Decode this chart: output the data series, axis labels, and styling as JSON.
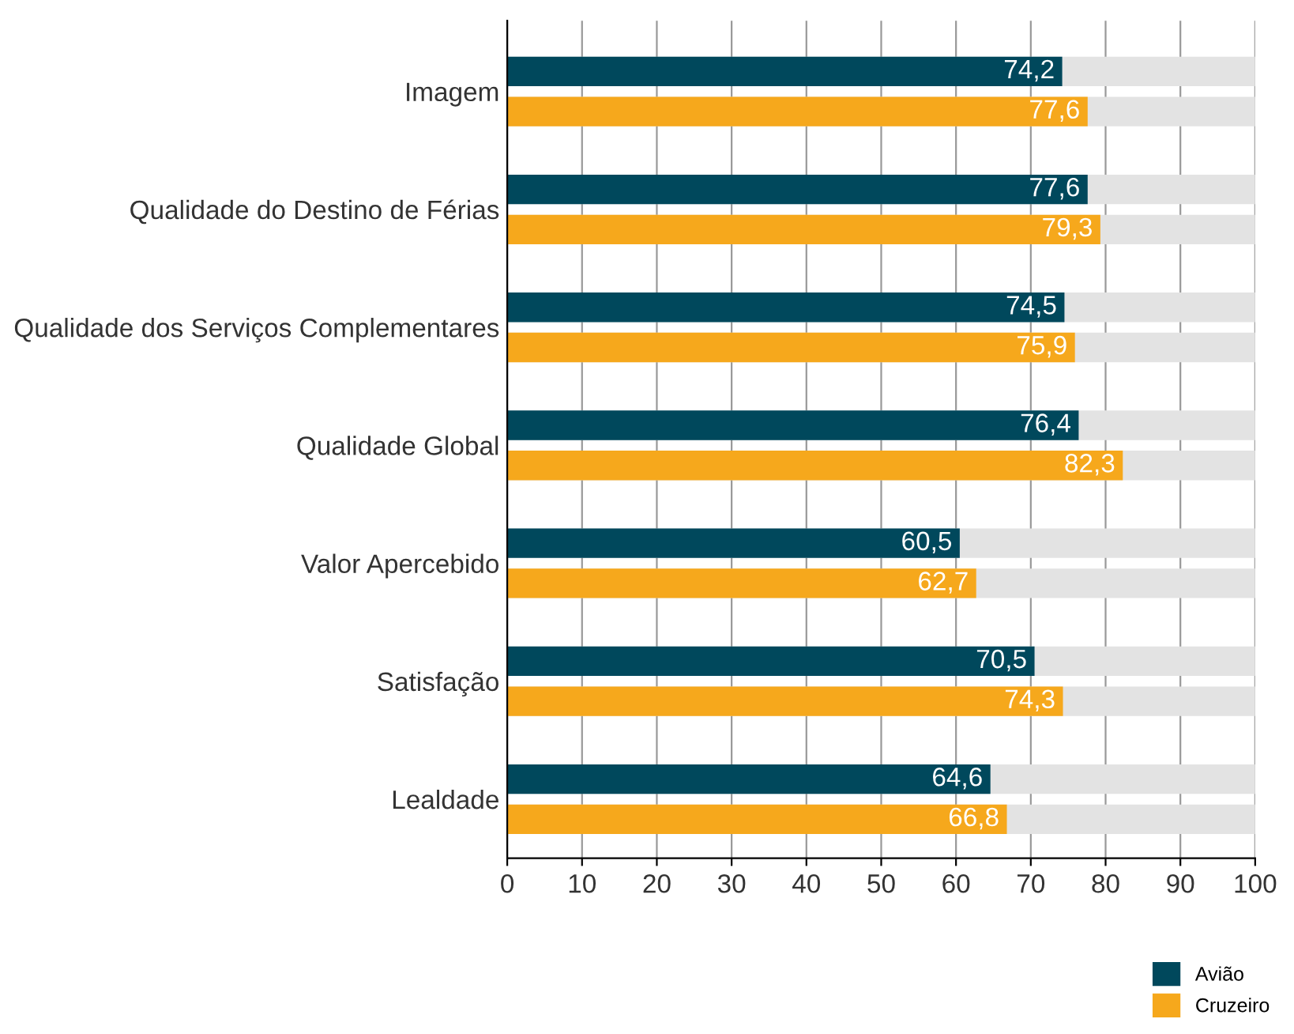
{
  "chart_data": {
    "type": "bar",
    "orientation": "horizontal",
    "categories": [
      "Imagem",
      "Qualidade do Destino de Férias",
      "Qualidade dos Serviços Complementares",
      "Qualidade Global",
      "Valor Apercebido",
      "Satisfação",
      "Lealdade"
    ],
    "series": [
      {
        "name": "Avião",
        "color": "#00485c",
        "values": [
          74.2,
          77.6,
          74.5,
          76.4,
          60.5,
          70.5,
          64.6
        ],
        "value_labels": [
          "74,2",
          "77,6",
          "74,5",
          "76,4",
          "60,5",
          "70,5",
          "64,6"
        ]
      },
      {
        "name": "Cruzeiro",
        "color": "#f6a81c",
        "values": [
          77.6,
          79.3,
          75.9,
          82.3,
          62.7,
          74.3,
          66.8
        ],
        "value_labels": [
          "77,6",
          "79,3",
          "75,9",
          "82,3",
          "62,7",
          "74,3",
          "66,8"
        ]
      }
    ],
    "xlim": [
      0,
      100
    ],
    "xticks": [
      0,
      10,
      20,
      30,
      40,
      50,
      60,
      70,
      80,
      90,
      100
    ],
    "grid": "x",
    "legend": "bottom right"
  }
}
